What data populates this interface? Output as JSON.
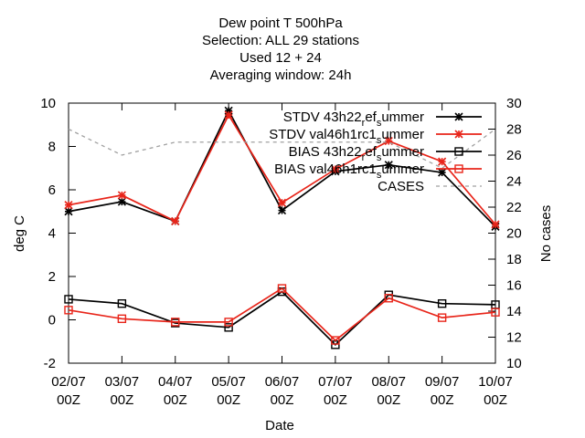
{
  "chart_data": {
    "type": "line",
    "title_lines": [
      "Dew point T 500hPa",
      "Selection: ALL      29 stations",
      "Used  12  + 24",
      "Averaging window: 24h"
    ],
    "xlabel": "Date",
    "ylabel": "deg C",
    "y2label": "No cases",
    "categories": [
      [
        "02/07",
        "00Z"
      ],
      [
        "03/07",
        "00Z"
      ],
      [
        "04/07",
        "00Z"
      ],
      [
        "05/07",
        "00Z"
      ],
      [
        "06/07",
        "00Z"
      ],
      [
        "07/07",
        "00Z"
      ],
      [
        "08/07",
        "00Z"
      ],
      [
        "09/07",
        "00Z"
      ],
      [
        "10/07",
        "00Z"
      ]
    ],
    "ylim": [
      -2,
      10
    ],
    "yticks": [
      -2,
      0,
      2,
      4,
      6,
      8,
      10
    ],
    "y2lim": [
      10,
      30
    ],
    "y2ticks": [
      10,
      12,
      14,
      16,
      18,
      20,
      22,
      24,
      26,
      28,
      30
    ],
    "legend_position": "top-right",
    "series": [
      {
        "name": "STDV 43h22_ref_summer",
        "legend_parts": [
          "STDV 43h22",
          "r",
          "ef",
          "s",
          "ummer"
        ],
        "color": "#000000",
        "marker": "star",
        "dash": false,
        "axis": "y",
        "values": [
          5.0,
          5.45,
          4.55,
          9.65,
          5.05,
          6.85,
          7.15,
          6.8,
          4.3
        ]
      },
      {
        "name": "STDV val46h1rc1_summer",
        "legend_parts": [
          "STDV val46h1rc1",
          "s",
          "ummer"
        ],
        "color": "#e8251a",
        "marker": "star",
        "dash": false,
        "axis": "y",
        "values": [
          5.3,
          5.75,
          4.55,
          9.45,
          5.4,
          6.95,
          8.25,
          7.3,
          4.4
        ]
      },
      {
        "name": "BIAS 43h22_ref_summer",
        "legend_parts": [
          "BIAS 43h22",
          "r",
          "ef",
          "s",
          "ummer"
        ],
        "color": "#000000",
        "marker": "square",
        "dash": false,
        "axis": "y",
        "values": [
          0.95,
          0.75,
          -0.15,
          -0.35,
          1.3,
          -1.15,
          1.15,
          0.75,
          0.7
        ]
      },
      {
        "name": "BIAS val46h1rc1_summer",
        "legend_parts": [
          "BIAS val46h1rc1",
          "s",
          "ummer"
        ],
        "color": "#e8251a",
        "marker": "square",
        "dash": false,
        "axis": "y",
        "values": [
          0.45,
          0.05,
          -0.1,
          -0.1,
          1.45,
          -0.95,
          1.0,
          0.1,
          0.35
        ]
      },
      {
        "name": "CASES",
        "legend_parts": [
          "CASES"
        ],
        "color": "#a0a0a0",
        "marker": "none",
        "dash": true,
        "axis": "y2",
        "values": [
          28.0,
          26.0,
          27.0,
          27.0,
          27.0,
          27.0,
          27.0,
          25.0,
          28.0
        ]
      }
    ]
  }
}
